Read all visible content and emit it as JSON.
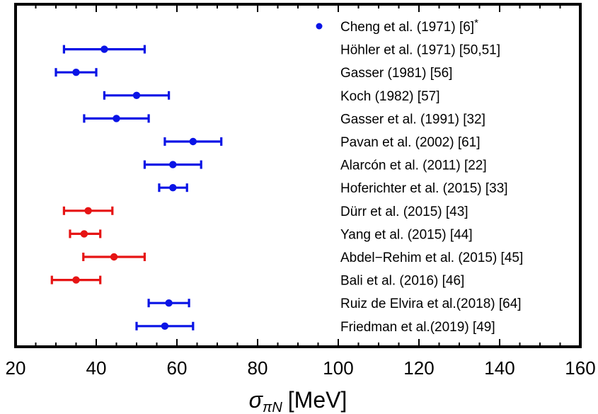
{
  "chart_data": {
    "type": "scatter",
    "xlim": [
      20,
      160
    ],
    "x_ticks": [
      20,
      40,
      60,
      80,
      100,
      120,
      140,
      160
    ],
    "x_tick_labels": [
      "20",
      "40",
      "60",
      "80",
      "100",
      "120",
      "140",
      "160"
    ],
    "xlabel": {
      "symbol": "σ",
      "subscript": "πN",
      "unit": "[MeV]"
    },
    "grid": false,
    "colors": {
      "blue": "#0a14e6",
      "red": "#e61414"
    },
    "entries": [
      {
        "label": "Cheng et al. (1971) [6]",
        "marker": "*",
        "color": "blue",
        "value": null,
        "low": null,
        "high": null,
        "legend_point": true
      },
      {
        "label": "Höhler et al. (1971) [50,51]",
        "color": "blue",
        "value": 42,
        "low": 32,
        "high": 52
      },
      {
        "label": "Gasser (1981) [56]",
        "color": "blue",
        "value": 35,
        "low": 30,
        "high": 40
      },
      {
        "label": "Koch (1982) [57]",
        "color": "blue",
        "value": 50,
        "low": 42,
        "high": 58
      },
      {
        "label": "Gasser et al. (1991) [32]",
        "color": "blue",
        "value": 45,
        "low": 37,
        "high": 53
      },
      {
        "label": "Pavan et al. (2002) [61]",
        "color": "blue",
        "value": 64,
        "low": 57,
        "high": 71
      },
      {
        "label": "Alarcón et al. (2011) [22]",
        "color": "blue",
        "value": 59,
        "low": 52,
        "high": 66
      },
      {
        "label": "Hoferichter et al. (2015) [33]",
        "color": "blue",
        "value": 59,
        "low": 55.6,
        "high": 62.5
      },
      {
        "label": "Dürr et al. (2015) [43]",
        "color": "red",
        "value": 38,
        "low": 32,
        "high": 44
      },
      {
        "label": "Yang et al. (2015) [44]",
        "color": "red",
        "value": 37,
        "low": 33.5,
        "high": 41
      },
      {
        "label": "Abdel−Rehim et al. (2015) [45]",
        "color": "red",
        "value": 44.4,
        "low": 36.8,
        "high": 52
      },
      {
        "label": "Bali et al. (2016) [46]",
        "color": "red",
        "value": 35,
        "low": 29,
        "high": 41
      },
      {
        "label": "Ruiz de Elvira et al.(2018) [64]",
        "color": "blue",
        "value": 58,
        "low": 53,
        "high": 63
      },
      {
        "label": "Friedman et al.(2019) [49]",
        "color": "blue",
        "value": 57,
        "low": 50,
        "high": 64
      }
    ]
  }
}
